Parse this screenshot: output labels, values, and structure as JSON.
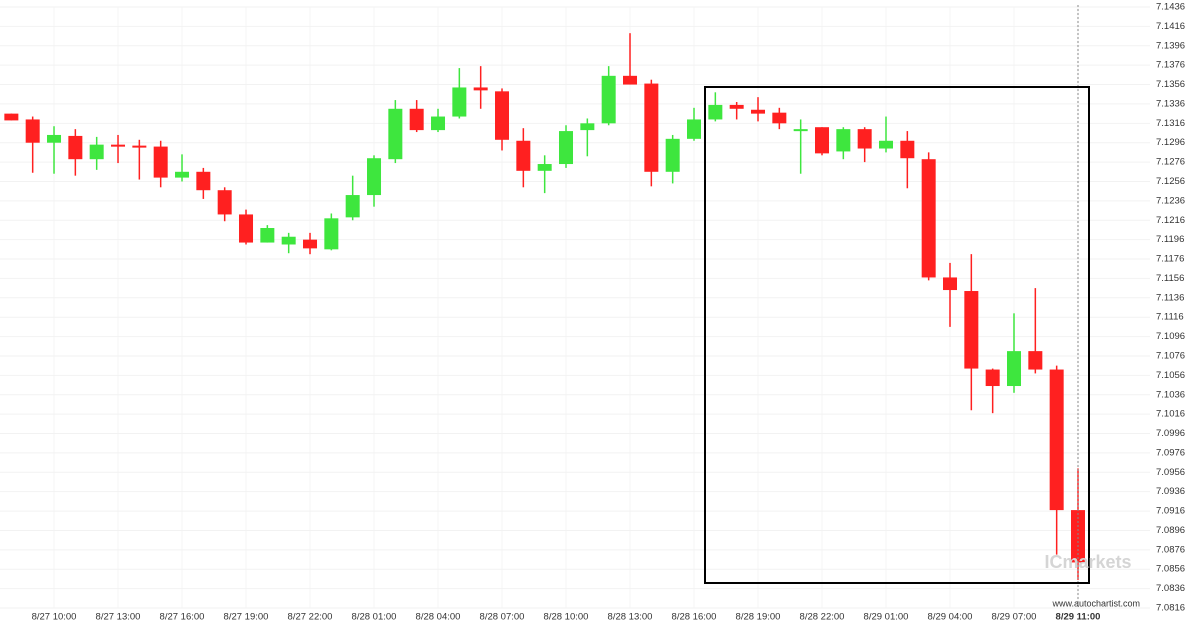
{
  "chart_data": {
    "type": "candlestick",
    "categories": [
      null,
      null,
      "8/27 10:00",
      null,
      null,
      "8/27 13:00",
      null,
      null,
      "8/27 16:00",
      null,
      null,
      "8/27 19:00",
      null,
      null,
      "8/27 22:00",
      null,
      null,
      "8/28 01:00",
      null,
      null,
      "8/28 04:00",
      null,
      null,
      "8/28 07:00",
      null,
      null,
      "8/28 10:00",
      null,
      null,
      "8/28 13:00",
      null,
      null,
      "8/28 16:00",
      null,
      null,
      "8/28 19:00",
      null,
      null,
      "8/28 22:00",
      null,
      null,
      "8/29 01:00",
      null,
      null,
      "8/29 04:00",
      null,
      null,
      "8/29 07:00",
      null,
      null,
      "8/29 11:00"
    ],
    "open": [
      7.1326,
      7.132,
      7.1296,
      7.1303,
      7.1279,
      7.1294,
      7.1293,
      7.1292,
      7.126,
      7.1266,
      7.1247,
      7.1222,
      7.1193,
      7.1191,
      7.1196,
      7.1186,
      7.1219,
      7.1242,
      7.1279,
      7.1331,
      7.1309,
      7.1323,
      7.1353,
      7.1349,
      7.1298,
      7.1267,
      7.1274,
      7.1309,
      7.1316,
      7.1365,
      7.1357,
      7.1266,
      7.13,
      7.132,
      7.1335,
      7.133,
      7.1327,
      7.1309,
      7.1312,
      7.1287,
      7.131,
      7.129,
      7.1298,
      7.1279,
      7.1157,
      7.1143,
      7.1062,
      7.1045,
      7.1081,
      7.1062,
      7.0917
    ],
    "high": [
      7.1326,
      7.1323,
      7.1313,
      7.131,
      7.1302,
      7.1304,
      7.1299,
      7.1298,
      7.1284,
      7.127,
      7.125,
      7.1227,
      7.1211,
      7.1203,
      7.1203,
      7.1223,
      7.1262,
      7.1283,
      7.134,
      7.134,
      7.1331,
      7.1373,
      7.1375,
      7.1352,
      7.1311,
      7.1283,
      7.1314,
      7.1321,
      7.1375,
      7.1409,
      7.1361,
      7.1304,
      7.1332,
      7.1348,
      7.1338,
      7.1343,
      7.1332,
      7.132,
      7.1312,
      7.1312,
      7.1312,
      7.1323,
      7.1308,
      7.1286,
      7.1172,
      7.1181,
      7.1063,
      7.112,
      7.1146,
      7.1066,
      7.096
    ],
    "low": [
      7.1319,
      7.1265,
      7.1264,
      7.1262,
      7.1268,
      7.1275,
      7.1258,
      7.125,
      7.1256,
      7.1238,
      7.1215,
      7.1191,
      7.1193,
      7.1182,
      7.1181,
      7.1185,
      7.1216,
      7.123,
      7.1275,
      7.1307,
      7.1307,
      7.1321,
      7.1331,
      7.1288,
      7.125,
      7.1244,
      7.127,
      7.1282,
      7.1314,
      7.1356,
      7.1251,
      7.1254,
      7.1298,
      7.1318,
      7.132,
      7.1318,
      7.131,
      7.1264,
      7.1283,
      7.1279,
      7.1276,
      7.1286,
      7.1249,
      7.1154,
      7.1106,
      7.102,
      7.1017,
      7.1038,
      7.1058,
      7.0871,
      7.0845
    ],
    "close": [
      7.1319,
      7.1296,
      7.1304,
      7.1279,
      7.1294,
      7.1292,
      7.1292,
      7.126,
      7.1266,
      7.1247,
      7.1222,
      7.1193,
      7.1208,
      7.1199,
      7.1187,
      7.1218,
      7.1242,
      7.128,
      7.1331,
      7.1309,
      7.1323,
      7.1353,
      7.135,
      7.1299,
      7.1267,
      7.1274,
      7.1308,
      7.1316,
      7.1365,
      7.1356,
      7.1266,
      7.13,
      7.132,
      7.1335,
      7.1331,
      7.1326,
      7.1316,
      7.131,
      7.1285,
      7.131,
      7.129,
      7.1298,
      7.128,
      7.1157,
      7.1144,
      7.1063,
      7.1045,
      7.1081,
      7.1062,
      7.0917,
      7.0863
    ],
    "up_color": "#3ee63e",
    "down_color": "#ff2020",
    "ylim": [
      7.0816,
      7.1436
    ],
    "yticks": [
      7.1436,
      7.1416,
      7.1396,
      7.1376,
      7.1356,
      7.1336,
      7.1316,
      7.1296,
      7.1276,
      7.1256,
      7.1236,
      7.1216,
      7.1196,
      7.1176,
      7.1156,
      7.1136,
      7.1116,
      7.1096,
      7.1076,
      7.1056,
      7.1036,
      7.1016,
      7.0996,
      7.0976,
      7.0956,
      7.0936,
      7.0916,
      7.0896,
      7.0876,
      7.0856,
      7.0836,
      7.0816
    ],
    "grid": true,
    "watermark": "ICmarkets",
    "source": "www.autochartist.com"
  }
}
